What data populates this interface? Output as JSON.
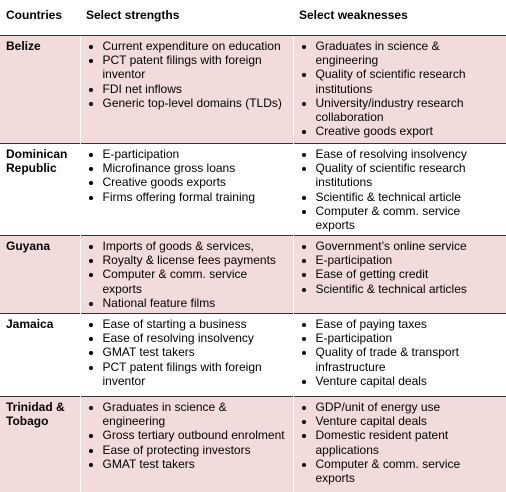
{
  "table": {
    "header": [
      "Countries",
      "Select strengths",
      "Select weaknesses"
    ],
    "rows": [
      {
        "country": "Belize",
        "strengths": [
          "Current expenditure on education",
          "PCT patent filings with foreign inventor",
          "FDI net inflows",
          "Generic top-level domains (TLDs)"
        ],
        "weaknesses": [
          "Graduates in science & engineering",
          "Quality of scientific research institutions",
          "University/industry research collaboration",
          "Creative goods export"
        ]
      },
      {
        "country": "Dominican Republic",
        "strengths": [
          "E-participation",
          "Microfinance gross loans",
          "Creative goods exports",
          "Firms offering formal training"
        ],
        "weaknesses": [
          "Ease of resolving insolvency",
          "Quality of scientific research institutions",
          "Scientific & technical article",
          "Computer & comm. service exports"
        ]
      },
      {
        "country": "Guyana",
        "strengths": [
          "Imports of goods & services,",
          "Royalty & license fees payments",
          "Computer & comm. service exports",
          "National feature films"
        ],
        "weaknesses": [
          "Government’s online service",
          "E-participation",
          "Ease of getting credit",
          "Scientific & technical articles"
        ]
      },
      {
        "country": "Jamaica",
        "strengths": [
          "Ease of starting a business",
          "Ease of resolving insolvency",
          "GMAT test takers",
          "PCT patent filings with foreign inventor"
        ],
        "weaknesses": [
          "Ease of paying taxes",
          "E-participation",
          "Quality of trade & transport infrastructure",
          "Venture capital deals"
        ]
      },
      {
        "country": "Trinidad & Tobago",
        "strengths": [
          "Graduates in science & engineering",
          "Gross tertiary outbound enrolment",
          "Ease of protecting investors",
          "GMAT test takers"
        ],
        "weaknesses": [
          "GDP/unit of energy use",
          "Venture capital deals",
          "Domestic resident patent applications",
          "Computer & comm. service exports"
        ]
      }
    ]
  }
}
